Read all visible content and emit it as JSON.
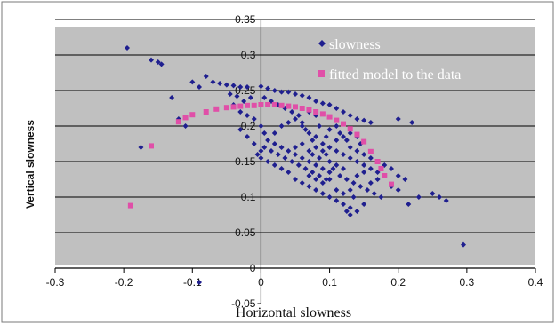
{
  "chart_data": {
    "type": "scatter",
    "title": "",
    "xlabel": "Horizontal slowness",
    "ylabel": "Vertical slowness",
    "xlim": [
      -0.3,
      0.4
    ],
    "ylim": [
      -0.05,
      0.35
    ],
    "x_ticks": [
      "-0.3",
      "-0.2",
      "-0.1",
      "0",
      "0.1",
      "0.2",
      "0.3",
      "0.4"
    ],
    "y_ticks": [
      "-0.05",
      "0",
      "0.05",
      "0.1",
      "0.15",
      "0.2",
      "0.25",
      "0.3",
      "0.35"
    ],
    "grid": "horizontal",
    "plot_background": "#c0c0c0",
    "legend_position": "top-right",
    "series": [
      {
        "name": "slowness",
        "marker": "diamond",
        "color": "#1f1f8f",
        "points": [
          [
            -0.195,
            0.31
          ],
          [
            -0.16,
            0.293
          ],
          [
            -0.15,
            0.29
          ],
          [
            -0.145,
            0.287
          ],
          [
            -0.08,
            0.27
          ],
          [
            -0.07,
            0.262
          ],
          [
            -0.06,
            0.26
          ],
          [
            -0.05,
            0.258
          ],
          [
            -0.04,
            0.257
          ],
          [
            -0.03,
            0.255
          ],
          [
            -0.02,
            0.255
          ],
          [
            0.0,
            0.256
          ],
          [
            0.01,
            0.253
          ],
          [
            0.02,
            0.25
          ],
          [
            0.03,
            0.248
          ],
          [
            0.04,
            0.248
          ],
          [
            0.05,
            0.245
          ],
          [
            0.06,
            0.243
          ],
          [
            0.07,
            0.24
          ],
          [
            0.08,
            0.235
          ],
          [
            0.09,
            0.232
          ],
          [
            0.1,
            0.23
          ],
          [
            0.11,
            0.225
          ],
          [
            0.12,
            0.22
          ],
          [
            0.13,
            0.215
          ],
          [
            0.14,
            0.21
          ],
          [
            0.15,
            0.208
          ],
          [
            0.16,
            0.205
          ],
          [
            0.2,
            0.21
          ],
          [
            0.22,
            0.205
          ],
          [
            -0.1,
            0.262
          ],
          [
            -0.09,
            0.255
          ],
          [
            -0.13,
            0.24
          ],
          [
            -0.175,
            0.17
          ],
          [
            -0.12,
            0.21
          ],
          [
            -0.11,
            0.2
          ],
          [
            -0.04,
            0.23
          ],
          [
            -0.03,
            0.22
          ],
          [
            -0.02,
            0.215
          ],
          [
            -0.01,
            0.21
          ],
          [
            0.0,
            0.2
          ],
          [
            0.005,
            0.19
          ],
          [
            0.01,
            0.18
          ],
          [
            0.02,
            0.175
          ],
          [
            0.03,
            0.17
          ],
          [
            0.04,
            0.165
          ],
          [
            0.05,
            0.16
          ],
          [
            0.06,
            0.155
          ],
          [
            0.07,
            0.15
          ],
          [
            0.08,
            0.145
          ],
          [
            0.09,
            0.14
          ],
          [
            -0.03,
            0.195
          ],
          [
            -0.02,
            0.185
          ],
          [
            -0.01,
            0.175
          ],
          [
            0.0,
            0.165
          ],
          [
            0.02,
            0.19
          ],
          [
            0.03,
            0.2
          ],
          [
            0.04,
            0.205
          ],
          [
            0.05,
            0.21
          ],
          [
            0.06,
            0.2
          ],
          [
            0.07,
            0.19
          ],
          [
            0.08,
            0.185
          ],
          [
            0.09,
            0.175
          ],
          [
            0.1,
            0.17
          ],
          [
            0.11,
            0.165
          ],
          [
            0.12,
            0.16
          ],
          [
            0.13,
            0.155
          ],
          [
            0.14,
            0.15
          ],
          [
            0.15,
            0.145
          ],
          [
            0.16,
            0.14
          ],
          [
            0.17,
            0.135
          ],
          [
            -0.005,
            0.16
          ],
          [
            0.01,
            0.15
          ],
          [
            0.02,
            0.145
          ],
          [
            0.03,
            0.14
          ],
          [
            0.04,
            0.135
          ],
          [
            0.05,
            0.125
          ],
          [
            0.06,
            0.12
          ],
          [
            0.07,
            0.115
          ],
          [
            0.08,
            0.11
          ],
          [
            0.09,
            0.105
          ],
          [
            0.1,
            0.1
          ],
          [
            0.11,
            0.095
          ],
          [
            0.12,
            0.09
          ],
          [
            0.13,
            0.085
          ],
          [
            0.14,
            0.08
          ],
          [
            0.05,
            0.17
          ],
          [
            0.06,
            0.175
          ],
          [
            0.07,
            0.165
          ],
          [
            0.075,
            0.16
          ],
          [
            0.085,
            0.155
          ],
          [
            0.095,
            0.16
          ],
          [
            0.1,
            0.15
          ],
          [
            0.105,
            0.14
          ],
          [
            0.115,
            0.13
          ],
          [
            0.125,
            0.125
          ],
          [
            0.135,
            0.12
          ],
          [
            0.145,
            0.115
          ],
          [
            0.155,
            0.11
          ],
          [
            0.165,
            0.105
          ],
          [
            0.175,
            0.1
          ],
          [
            0.06,
            0.205
          ],
          [
            0.065,
            0.195
          ],
          [
            0.075,
            0.18
          ],
          [
            0.08,
            0.17
          ],
          [
            0.09,
            0.165
          ],
          [
            0.095,
            0.185
          ],
          [
            0.1,
            0.195
          ],
          [
            0.11,
            0.2
          ],
          [
            0.115,
            0.19
          ],
          [
            0.125,
            0.18
          ],
          [
            0.13,
            0.17
          ],
          [
            0.14,
            0.165
          ],
          [
            0.145,
            0.175
          ],
          [
            0.15,
            0.16
          ],
          [
            0.16,
            0.155
          ],
          [
            0.17,
            0.15
          ],
          [
            0.18,
            0.145
          ],
          [
            0.19,
            0.14
          ],
          [
            0.2,
            0.13
          ],
          [
            0.21,
            0.125
          ],
          [
            0.19,
            0.115
          ],
          [
            0.2,
            0.11
          ],
          [
            0.215,
            0.09
          ],
          [
            0.23,
            0.1
          ],
          [
            0.25,
            0.105
          ],
          [
            0.26,
            0.1
          ],
          [
            0.27,
            0.095
          ],
          [
            0.295,
            0.033
          ],
          [
            0.13,
            0.075
          ],
          [
            0.125,
            0.08
          ],
          [
            0.15,
            0.09
          ],
          [
            0.135,
            0.1
          ],
          [
            0.16,
            0.12
          ],
          [
            0.17,
            0.125
          ],
          [
            0.18,
            0.13
          ],
          [
            0.085,
            0.2
          ],
          [
            0.08,
            0.215
          ],
          [
            0.07,
            0.22
          ],
          [
            0.055,
            0.215
          ],
          [
            0.045,
            0.22
          ],
          [
            0.035,
            0.225
          ],
          [
            0.025,
            0.23
          ],
          [
            0.015,
            0.235
          ],
          [
            0.005,
            0.24
          ],
          [
            -0.015,
            0.24
          ],
          [
            -0.025,
            0.235
          ],
          [
            -0.035,
            0.242
          ],
          [
            -0.045,
            0.245
          ],
          [
            0.09,
            0.12
          ],
          [
            0.1,
            0.125
          ],
          [
            0.11,
            0.11
          ],
          [
            0.12,
            0.105
          ],
          [
            0.13,
            0.11
          ],
          [
            0.14,
            0.13
          ],
          [
            0.15,
            0.135
          ],
          [
            0.085,
            0.13
          ],
          [
            0.075,
            0.135
          ],
          [
            0.065,
            0.14
          ],
          [
            0.055,
            0.145
          ],
          [
            0.045,
            0.15
          ],
          [
            0.035,
            0.155
          ],
          [
            0.025,
            0.16
          ],
          [
            0.015,
            0.165
          ],
          [
            0.005,
            0.17
          ],
          [
            0.0,
            0.155
          ],
          [
            0.11,
            0.18
          ],
          [
            0.12,
            0.185
          ],
          [
            0.13,
            0.19
          ],
          [
            0.14,
            0.185
          ],
          [
            0.12,
            0.14
          ],
          [
            0.11,
            0.145
          ],
          [
            0.1,
            0.135
          ],
          [
            0.095,
            0.125
          ],
          [
            0.08,
            0.125
          ],
          [
            0.07,
            0.13
          ],
          [
            -0.09,
            -0.02
          ]
        ]
      },
      {
        "name": "fitted model to the data",
        "marker": "square",
        "color": "#e04fa8",
        "points": [
          [
            -0.19,
            0.088
          ],
          [
            -0.16,
            0.172
          ],
          [
            -0.12,
            0.206
          ],
          [
            -0.11,
            0.212
          ],
          [
            -0.1,
            0.216
          ],
          [
            -0.08,
            0.22
          ],
          [
            -0.065,
            0.224
          ],
          [
            -0.05,
            0.226
          ],
          [
            -0.04,
            0.227
          ],
          [
            -0.03,
            0.228
          ],
          [
            -0.02,
            0.229
          ],
          [
            -0.01,
            0.229
          ],
          [
            0.0,
            0.23
          ],
          [
            0.01,
            0.23
          ],
          [
            0.02,
            0.23
          ],
          [
            0.03,
            0.229
          ],
          [
            0.04,
            0.228
          ],
          [
            0.05,
            0.227
          ],
          [
            0.06,
            0.225
          ],
          [
            0.07,
            0.223
          ],
          [
            0.08,
            0.22
          ],
          [
            0.09,
            0.217
          ],
          [
            0.1,
            0.213
          ],
          [
            0.11,
            0.208
          ],
          [
            0.12,
            0.203
          ],
          [
            0.13,
            0.196
          ],
          [
            0.14,
            0.188
          ],
          [
            0.15,
            0.178
          ],
          [
            0.16,
            0.164
          ],
          [
            0.17,
            0.15
          ],
          [
            0.175,
            0.14
          ],
          [
            0.18,
            0.13
          ],
          [
            0.19,
            0.118
          ]
        ]
      }
    ]
  }
}
